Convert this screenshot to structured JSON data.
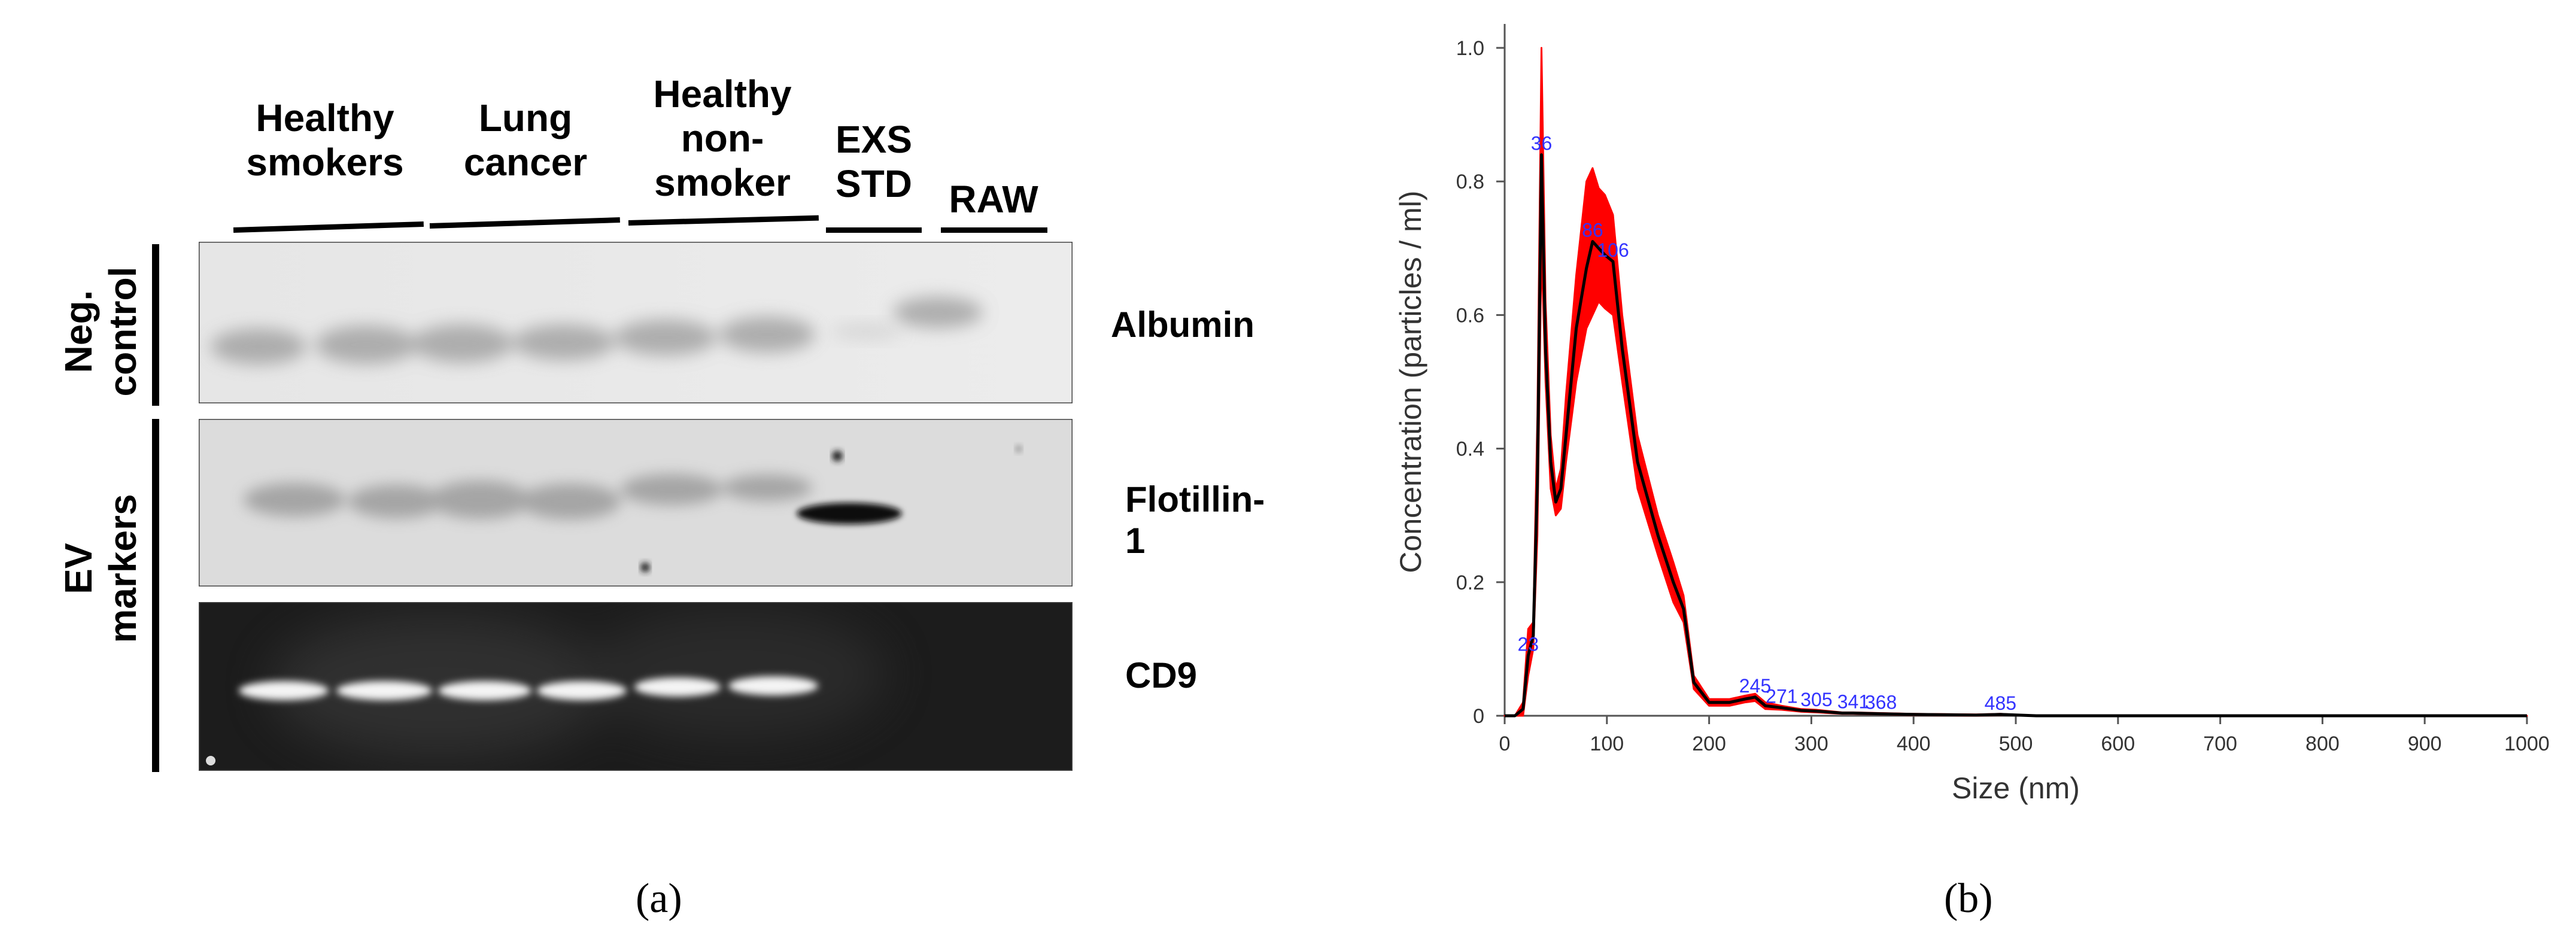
{
  "panel_a": {
    "group_labels": [
      {
        "lines": [
          "Healthy",
          "smokers"
        ]
      },
      {
        "lines": [
          "Lung",
          "cancer"
        ]
      },
      {
        "lines": [
          "Healthy",
          "non-",
          "smoker"
        ]
      },
      {
        "lines": [
          "EXS",
          "STD"
        ]
      },
      {
        "lines": [
          "RAW"
        ]
      }
    ],
    "row_labels": {
      "neg_control": [
        "Neg.",
        "control"
      ],
      "ev_markers": [
        "EV",
        "markers"
      ]
    },
    "band_labels": [
      "Albumin",
      "Flotillin-1",
      "CD9"
    ],
    "caption": "(a)"
  },
  "panel_b": {
    "caption": "(b)",
    "chart_data": {
      "type": "line",
      "title": "",
      "xlabel": "Size (nm)",
      "ylabel": "Concentration (particles / ml)",
      "xlim": [
        0,
        1000
      ],
      "ylim": [
        0,
        1.0
      ],
      "x_ticks": [
        0,
        100,
        200,
        300,
        400,
        500,
        600,
        700,
        800,
        900,
        1000
      ],
      "y_ticks": [
        0,
        0.2,
        0.4,
        0.6,
        0.8,
        1.0
      ],
      "y_tick_labels": [
        "0",
        "0.2",
        "0.4",
        "0.6",
        "0.8",
        "1.0"
      ],
      "grid": false,
      "series": [
        {
          "color": "#000000",
          "x": [
            0,
            10,
            18,
            23,
            28,
            32,
            36,
            40,
            45,
            50,
            55,
            60,
            70,
            80,
            86,
            92,
            98,
            106,
            115,
            130,
            150,
            165,
            175,
            185,
            200,
            220,
            235,
            245,
            255,
            271,
            290,
            305,
            330,
            341,
            368,
            400,
            460,
            485,
            520,
            600,
            700,
            800,
            900,
            1000
          ],
          "y": [
            0,
            0,
            0.01,
            0.09,
            0.12,
            0.35,
            0.84,
            0.55,
            0.38,
            0.32,
            0.34,
            0.42,
            0.58,
            0.67,
            0.71,
            0.7,
            0.69,
            0.68,
            0.55,
            0.38,
            0.27,
            0.2,
            0.16,
            0.05,
            0.02,
            0.02,
            0.025,
            0.028,
            0.015,
            0.012,
            0.008,
            0.007,
            0.004,
            0.004,
            0.003,
            0.002,
            0.001,
            0.002,
            0.0,
            0.0,
            0.0,
            0.0,
            0.0,
            0.0
          ],
          "band_color": "#ff0000",
          "band_upper": [
            0,
            0,
            0.02,
            0.13,
            0.14,
            0.45,
            1.0,
            0.62,
            0.42,
            0.34,
            0.37,
            0.48,
            0.66,
            0.8,
            0.82,
            0.79,
            0.78,
            0.75,
            0.6,
            0.42,
            0.3,
            0.23,
            0.18,
            0.06,
            0.025,
            0.025,
            0.03,
            0.033,
            0.02,
            0.015,
            0.01,
            0.009,
            0.005,
            0.005,
            0.004,
            0.003,
            0.002,
            0.003,
            0.0,
            0.0,
            0.0,
            0.0,
            0.0,
            0.0
          ],
          "band_lower": [
            0,
            0,
            0.0,
            0.06,
            0.1,
            0.27,
            0.7,
            0.5,
            0.34,
            0.3,
            0.31,
            0.38,
            0.5,
            0.58,
            0.6,
            0.62,
            0.61,
            0.6,
            0.5,
            0.34,
            0.24,
            0.17,
            0.14,
            0.04,
            0.015,
            0.015,
            0.02,
            0.022,
            0.01,
            0.009,
            0.006,
            0.005,
            0.003,
            0.003,
            0.002,
            0.001,
            0.0,
            0.001,
            0.0,
            0.0,
            0.0,
            0.0,
            0.0,
            0.0
          ]
        }
      ],
      "peak_labels": [
        {
          "x": 23,
          "y": 0.09,
          "text": "23"
        },
        {
          "x": 36,
          "y": 0.84,
          "text": "36"
        },
        {
          "x": 86,
          "y": 0.71,
          "text": "86"
        },
        {
          "x": 106,
          "y": 0.68,
          "text": "106"
        },
        {
          "x": 245,
          "y": 0.028,
          "text": "245"
        },
        {
          "x": 271,
          "y": 0.012,
          "text": "271"
        },
        {
          "x": 305,
          "y": 0.007,
          "text": "305"
        },
        {
          "x": 341,
          "y": 0.004,
          "text": "341"
        },
        {
          "x": 368,
          "y": 0.003,
          "text": "368"
        },
        {
          "x": 485,
          "y": 0.002,
          "text": "485"
        }
      ],
      "peak_label_color": "#3333ff"
    }
  }
}
